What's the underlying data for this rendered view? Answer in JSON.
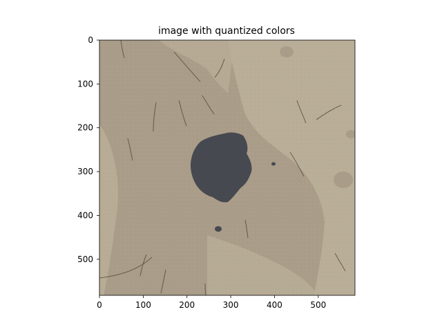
{
  "figure": {
    "title": "image with quantized colors"
  },
  "axes": {
    "x_ticks": [
      "0",
      "100",
      "200",
      "300",
      "400",
      "500"
    ],
    "y_ticks": [
      "0",
      "100",
      "200",
      "300",
      "400",
      "500"
    ],
    "x_range": [
      0,
      584
    ],
    "y_range": [
      0,
      584
    ]
  },
  "palette": {
    "dark_spot": "#464950",
    "skin_dark": "#a99c88",
    "skin_light": "#b9ae98",
    "hair": "#5e5548"
  }
}
